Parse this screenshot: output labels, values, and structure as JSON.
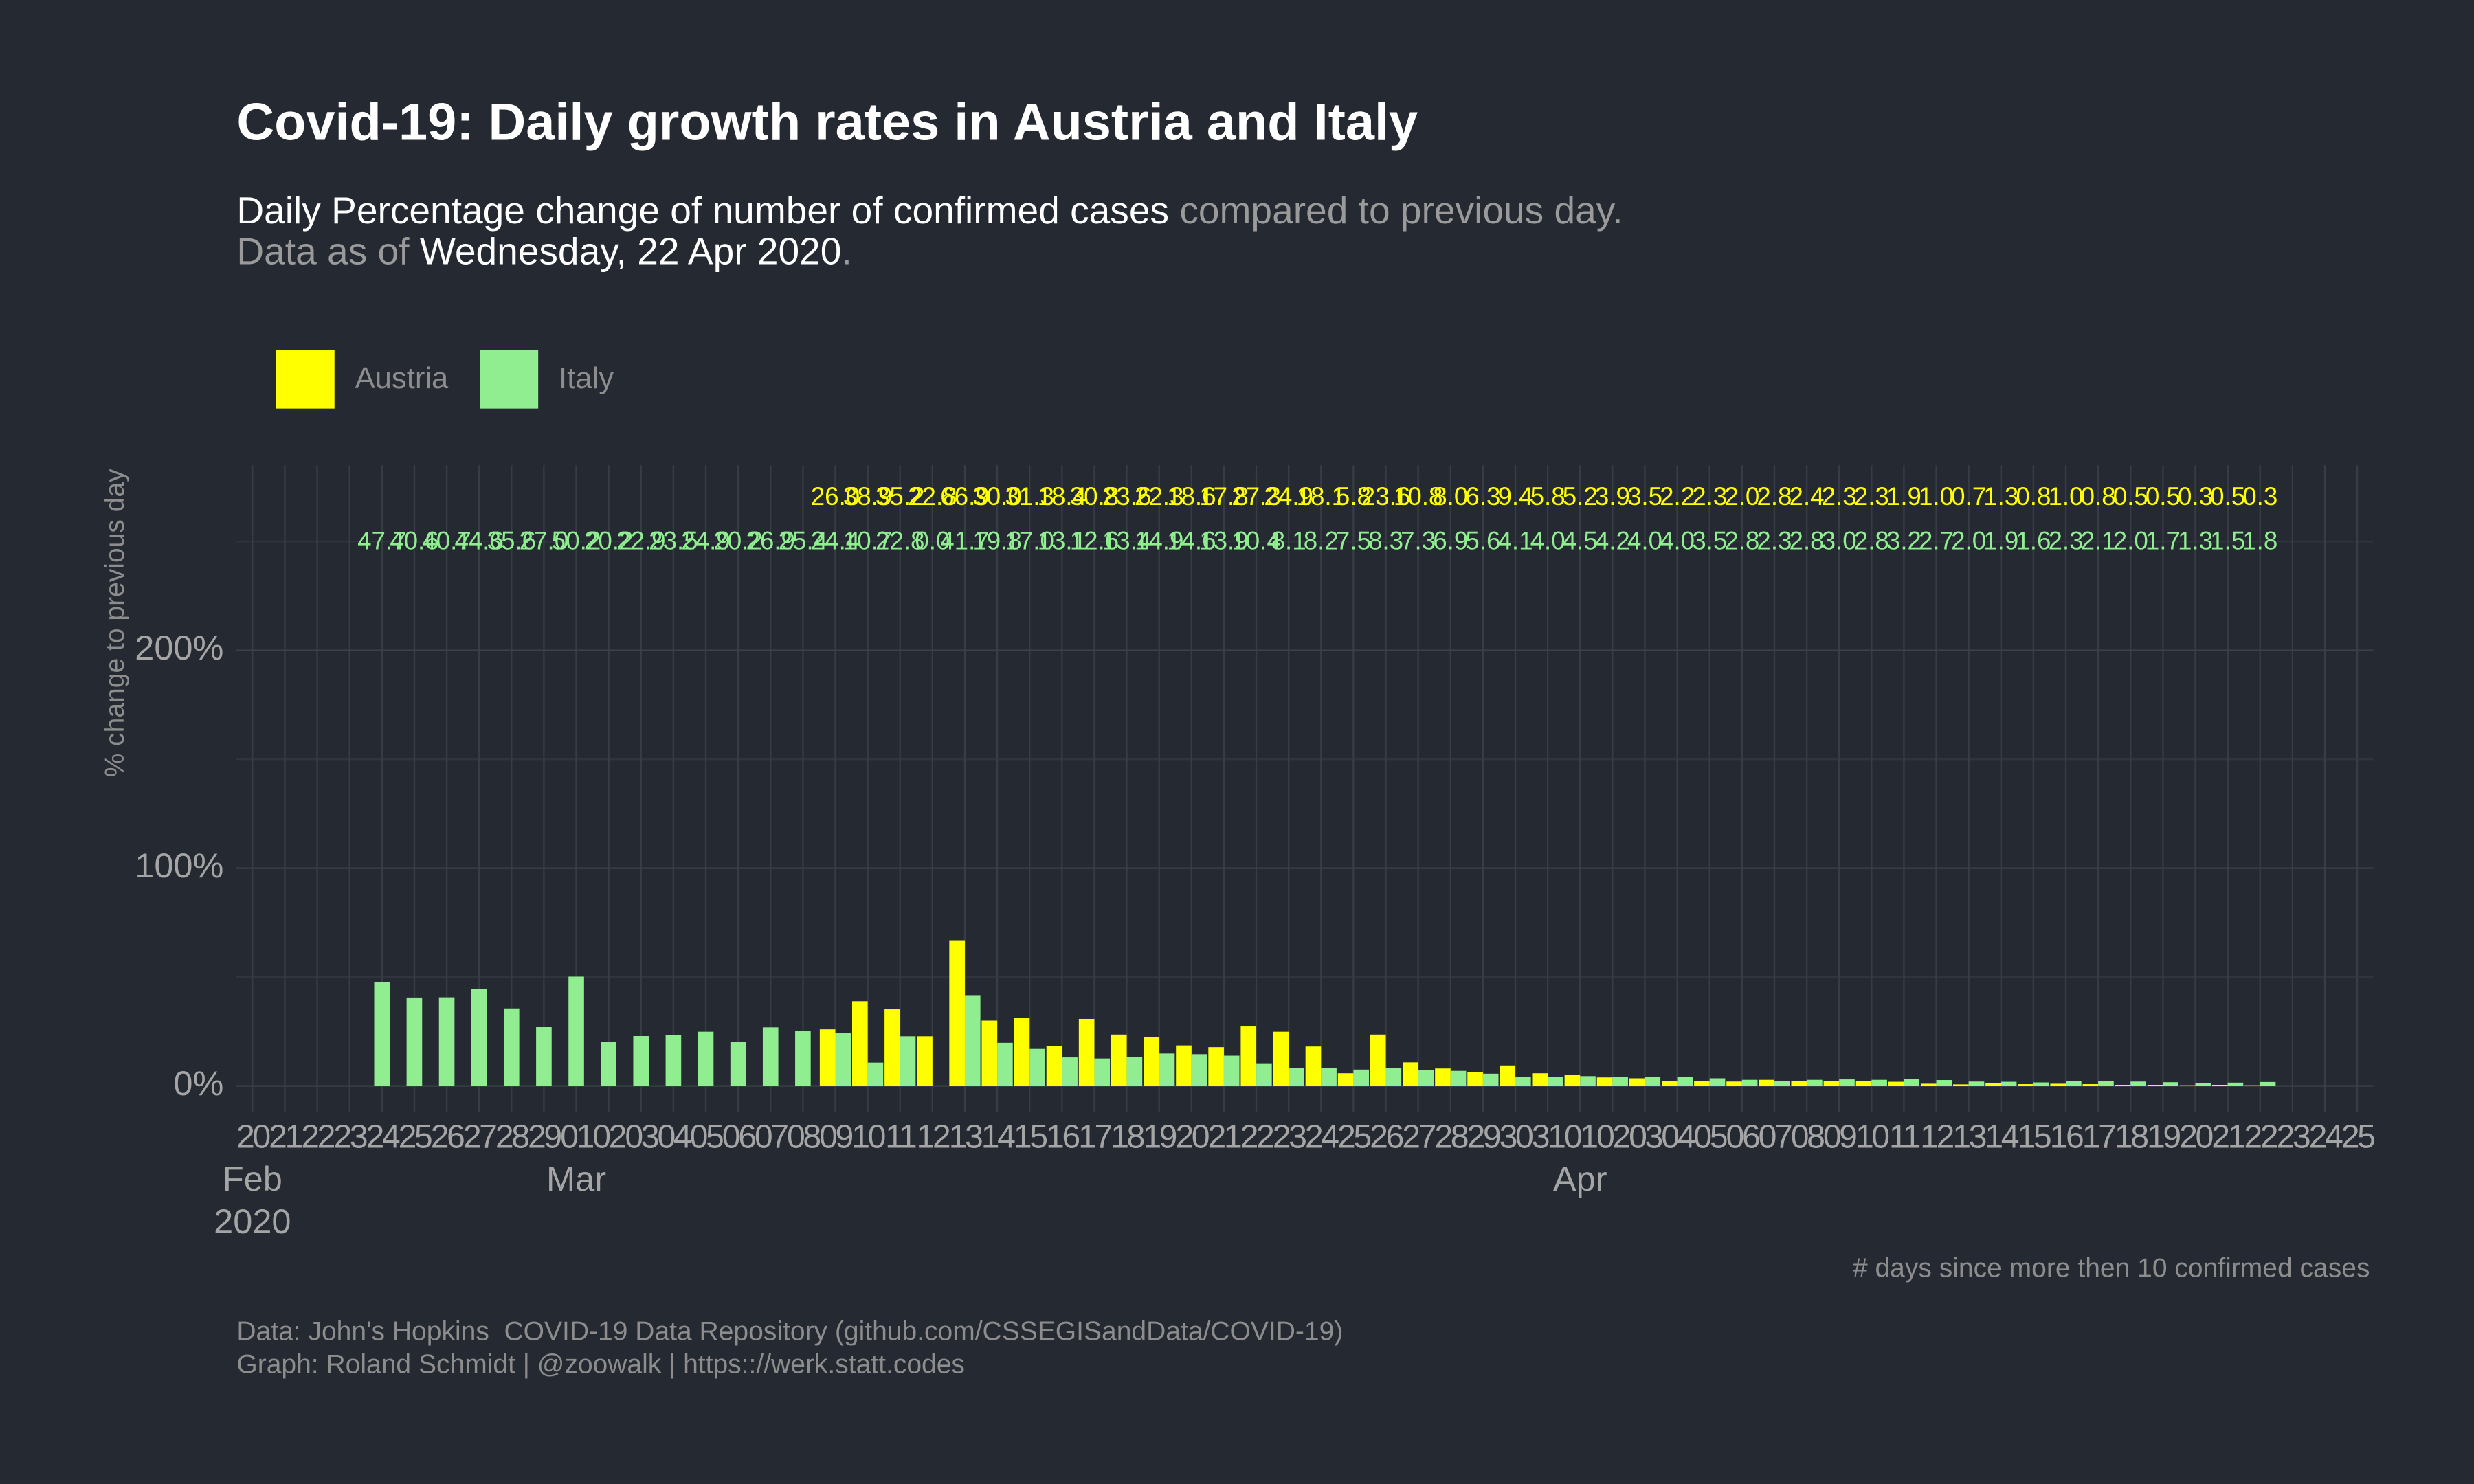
{
  "chart_data": {
    "type": "bar",
    "title": "Covid-19: Daily growth rates in Austria and Italy",
    "subtitle": [
      [
        "Daily Percentage change of number of confirmed cases",
        " compared to previous day."
      ],
      [
        "Data as of ",
        "Wednesday, 22 Apr 2020",
        "."
      ]
    ],
    "ylabel": "% change to previous day",
    "xlabel": "# days since more then 10 confirmed cases",
    "caption": [
      "Data: John's Hopkins  COVID-19 Data Repository (github.com/CSSEGISandData/COVID-19)",
      "Graph: Roland Schmidt | @zoowalk | https:://werk.statt.codes"
    ],
    "x": [
      "2020-02-24",
      "2020-02-25",
      "2020-02-26",
      "2020-02-27",
      "2020-02-28",
      "2020-02-29",
      "2020-03-01",
      "2020-03-02",
      "2020-03-03",
      "2020-03-04",
      "2020-03-05",
      "2020-03-06",
      "2020-03-07",
      "2020-03-08",
      "2020-03-09",
      "2020-03-10",
      "2020-03-11",
      "2020-03-12",
      "2020-03-13",
      "2020-03-14",
      "2020-03-15",
      "2020-03-16",
      "2020-03-17",
      "2020-03-18",
      "2020-03-19",
      "2020-03-20",
      "2020-03-21",
      "2020-03-22",
      "2020-03-23",
      "2020-03-24",
      "2020-03-25",
      "2020-03-26",
      "2020-03-27",
      "2020-03-28",
      "2020-03-29",
      "2020-03-30",
      "2020-03-31",
      "2020-04-01",
      "2020-04-02",
      "2020-04-03",
      "2020-04-04",
      "2020-04-05",
      "2020-04-06",
      "2020-04-07",
      "2020-04-08",
      "2020-04-09",
      "2020-04-10",
      "2020-04-11",
      "2020-04-12",
      "2020-04-13",
      "2020-04-14",
      "2020-04-15",
      "2020-04-16",
      "2020-04-17",
      "2020-04-18",
      "2020-04-19",
      "2020-04-20",
      "2020-04-21",
      "2020-04-22"
    ],
    "series": [
      {
        "name": "Austria",
        "color": "#ffff00",
        "values": [
          null,
          null,
          null,
          null,
          null,
          null,
          null,
          null,
          null,
          null,
          null,
          null,
          null,
          null,
          26.0,
          38.9,
          35.2,
          22.8,
          66.9,
          30.0,
          31.3,
          18.4,
          30.8,
          23.6,
          22.3,
          18.6,
          17.8,
          27.3,
          24.9,
          18.1,
          5.8,
          23.6,
          10.8,
          8.0,
          6.3,
          9.4,
          5.8,
          5.2,
          3.9,
          3.5,
          2.2,
          2.3,
          2.0,
          2.8,
          2.4,
          2.3,
          2.3,
          1.9,
          1.0,
          0.7,
          1.3,
          0.8,
          1.0,
          0.8,
          0.5,
          0.5,
          0.3,
          0.5,
          0.3
        ],
        "value_labels": [
          null,
          null,
          null,
          null,
          null,
          null,
          null,
          null,
          null,
          null,
          null,
          null,
          null,
          null,
          "26.0",
          "38.9",
          "35.2",
          "22.8",
          "66.9",
          "30.0",
          "31.3",
          "18.4",
          "30.8",
          "23.6",
          "22.3",
          "18.6",
          "17.8",
          "27.3",
          "24.9",
          "18.1",
          "5.8",
          "23.6",
          "10.8",
          "8.0",
          "6.3",
          "9.4",
          "5.8",
          "5.2",
          "3.9",
          "3.5",
          "2.2",
          "2.3",
          "2.0",
          "2.8",
          "2.4",
          "2.3",
          "2.3",
          "1.9",
          "1.0",
          "0.7",
          "1.3",
          "0.8",
          "1.0",
          "0.8",
          "0.5",
          "0.5",
          "0.3",
          "0.5",
          "0.3"
        ]
      },
      {
        "name": "Italy",
        "color": "#90ee90",
        "values": [
          47.7,
          40.6,
          40.7,
          44.6,
          35.6,
          27.0,
          50.2,
          20.2,
          22.9,
          23.5,
          24.9,
          20.2,
          26.9,
          25.4,
          24.4,
          10.7,
          22.8,
          0.0,
          41.7,
          19.8,
          17.0,
          13.1,
          12.6,
          13.4,
          14.9,
          14.6,
          13.9,
          10.4,
          8.1,
          8.2,
          7.5,
          8.3,
          7.3,
          6.9,
          5.6,
          4.1,
          4.0,
          4.5,
          4.2,
          4.0,
          4.0,
          3.5,
          2.8,
          2.3,
          2.8,
          3.0,
          2.8,
          3.2,
          2.7,
          2.0,
          1.9,
          1.6,
          2.3,
          2.1,
          2.0,
          1.7,
          1.3,
          1.5,
          1.8
        ],
        "value_labels": [
          "47.7",
          "40.6",
          "40.7",
          "44.6",
          "35.6",
          "27.0",
          "50.2",
          "20.2",
          "22.9",
          "23.5",
          "24.9",
          "20.2",
          "26.9",
          "25.4",
          "24.4",
          "10.7",
          "22.8",
          "0.0",
          "41.7",
          "19.8",
          "17.0",
          "13.1",
          "12.6",
          "13.4",
          "14.9",
          "14.6",
          "13.9",
          "10.4",
          "8.1",
          "8.2",
          "7.5",
          "8.3",
          "7.3",
          "6.9",
          "5.6",
          "4.1",
          "4.0",
          "4.5",
          "4.2",
          "4.0",
          "4.0",
          "3.5",
          "2.8",
          "2.3",
          "2.8",
          "3.0",
          "2.8",
          "3.2",
          "2.7",
          "2.0",
          "1.9",
          "1.6",
          "2.3",
          "2.1",
          "2.0",
          "1.7",
          "1.3",
          "1.5",
          "1.8"
        ]
      }
    ],
    "ylim": [
      -12,
      285
    ],
    "yticks": [
      {
        "value": 0,
        "label": "0%"
      },
      {
        "value": 100,
        "label": "100%"
      },
      {
        "value": 200,
        "label": "200%"
      }
    ],
    "yticks_minor": [
      50,
      150,
      250
    ],
    "xlim": [
      "2020-02-20",
      "2020-04-25"
    ],
    "xticks": [
      {
        "value": "2020-02-20",
        "label": "20"
      },
      {
        "value": "2020-02-21",
        "label": "21"
      },
      {
        "value": "2020-02-22",
        "label": "22"
      },
      {
        "value": "2020-02-23",
        "label": "23"
      },
      {
        "value": "2020-02-24",
        "label": "24"
      },
      {
        "value": "2020-02-25",
        "label": "25"
      },
      {
        "value": "2020-02-26",
        "label": "26"
      },
      {
        "value": "2020-02-27",
        "label": "27"
      },
      {
        "value": "2020-02-28",
        "label": "28"
      },
      {
        "value": "2020-02-29",
        "label": "29"
      },
      {
        "value": "2020-03-01",
        "label": "01"
      },
      {
        "value": "2020-03-02",
        "label": "02"
      },
      {
        "value": "2020-03-03",
        "label": "03"
      },
      {
        "value": "2020-03-04",
        "label": "04"
      },
      {
        "value": "2020-03-05",
        "label": "05"
      },
      {
        "value": "2020-03-06",
        "label": "06"
      },
      {
        "value": "2020-03-07",
        "label": "07"
      },
      {
        "value": "2020-03-08",
        "label": "08"
      },
      {
        "value": "2020-03-09",
        "label": "09"
      },
      {
        "value": "2020-03-10",
        "label": "10"
      },
      {
        "value": "2020-03-11",
        "label": "11"
      },
      {
        "value": "2020-03-12",
        "label": "12"
      },
      {
        "value": "2020-03-13",
        "label": "13"
      },
      {
        "value": "2020-03-14",
        "label": "14"
      },
      {
        "value": "2020-03-15",
        "label": "15"
      },
      {
        "value": "2020-03-16",
        "label": "16"
      },
      {
        "value": "2020-03-17",
        "label": "17"
      },
      {
        "value": "2020-03-18",
        "label": "18"
      },
      {
        "value": "2020-03-19",
        "label": "19"
      },
      {
        "value": "2020-03-20",
        "label": "20"
      },
      {
        "value": "2020-03-21",
        "label": "21"
      },
      {
        "value": "2020-03-22",
        "label": "22"
      },
      {
        "value": "2020-03-23",
        "label": "23"
      },
      {
        "value": "2020-03-24",
        "label": "24"
      },
      {
        "value": "2020-03-25",
        "label": "25"
      },
      {
        "value": "2020-03-26",
        "label": "26"
      },
      {
        "value": "2020-03-27",
        "label": "27"
      },
      {
        "value": "2020-03-28",
        "label": "28"
      },
      {
        "value": "2020-03-29",
        "label": "29"
      },
      {
        "value": "2020-03-30",
        "label": "30"
      },
      {
        "value": "2020-03-31",
        "label": "31"
      },
      {
        "value": "2020-04-01",
        "label": "01"
      },
      {
        "value": "2020-04-02",
        "label": "02"
      },
      {
        "value": "2020-04-03",
        "label": "03"
      },
      {
        "value": "2020-04-04",
        "label": "04"
      },
      {
        "value": "2020-04-05",
        "label": "05"
      },
      {
        "value": "2020-04-06",
        "label": "06"
      },
      {
        "value": "2020-04-07",
        "label": "07"
      },
      {
        "value": "2020-04-08",
        "label": "08"
      },
      {
        "value": "2020-04-09",
        "label": "09"
      },
      {
        "value": "2020-04-10",
        "label": "10"
      },
      {
        "value": "2020-04-11",
        "label": "11"
      },
      {
        "value": "2020-04-12",
        "label": "12"
      },
      {
        "value": "2020-04-13",
        "label": "13"
      },
      {
        "value": "2020-04-14",
        "label": "14"
      },
      {
        "value": "2020-04-15",
        "label": "15"
      },
      {
        "value": "2020-04-16",
        "label": "16"
      },
      {
        "value": "2020-04-17",
        "label": "17"
      },
      {
        "value": "2020-04-18",
        "label": "18"
      },
      {
        "value": "2020-04-19",
        "label": "19"
      },
      {
        "value": "2020-04-20",
        "label": "20"
      },
      {
        "value": "2020-04-21",
        "label": "21"
      },
      {
        "value": "2020-04-22",
        "label": "22"
      },
      {
        "value": "2020-04-23",
        "label": "23"
      },
      {
        "value": "2020-04-24",
        "label": "24"
      },
      {
        "value": "2020-04-25",
        "label": "25"
      }
    ],
    "xticks_month": [
      {
        "value": "2020-02-20",
        "label": "Feb"
      },
      {
        "value": "2020-03-01",
        "label": "Mar"
      },
      {
        "value": "2020-04-01",
        "label": "Apr"
      }
    ],
    "xticks_year": [
      {
        "value": "2020-02-20",
        "label": "2020"
      }
    ],
    "grid": true,
    "legend": "top-left"
  }
}
